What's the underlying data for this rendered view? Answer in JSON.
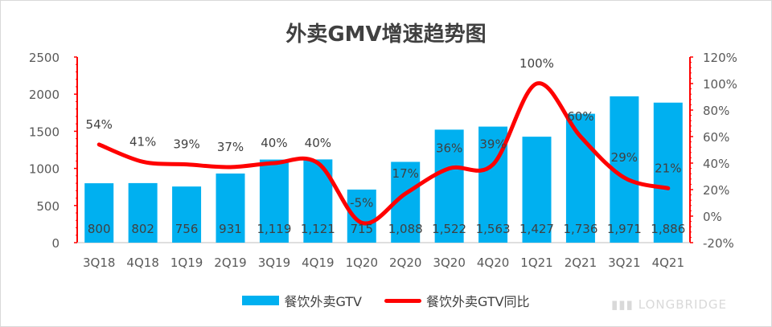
{
  "chart_data": {
    "type": "bar",
    "title": "外卖GMV增速趋势图",
    "categories": [
      "3Q18",
      "4Q18",
      "1Q19",
      "2Q19",
      "3Q19",
      "4Q19",
      "1Q20",
      "2Q20",
      "3Q20",
      "4Q20",
      "1Q21",
      "2Q21",
      "3Q21",
      "4Q21"
    ],
    "series": [
      {
        "name": "餐饮外卖GTV",
        "type": "bar",
        "axis": "left",
        "color": "#00b0f0",
        "values": [
          800,
          802,
          756,
          931,
          1119,
          1121,
          715,
          1088,
          1522,
          1563,
          1427,
          1736,
          1971,
          1886
        ],
        "labels": [
          "800",
          "802",
          "756",
          "931",
          "1,119",
          "1,121",
          "715",
          "1,088",
          "1,522",
          "1,563",
          "1,427",
          "1,736",
          "1,971",
          "1,886"
        ]
      },
      {
        "name": "餐饮外卖GTV同比",
        "type": "line",
        "axis": "right",
        "color": "#ff0000",
        "values": [
          54,
          41,
          39,
          37,
          40,
          40,
          -5,
          17,
          36,
          39,
          100,
          60,
          29,
          21
        ],
        "labels": [
          "54%",
          "41%",
          "39%",
          "37%",
          "40%",
          "40%",
          "-5%",
          "17%",
          "36%",
          "39%",
          "100%",
          "60%",
          "29%",
          "21%"
        ]
      }
    ],
    "y_left": {
      "ylim": [
        0,
        2500
      ],
      "ticks": [
        0,
        500,
        1000,
        1500,
        2000,
        2500
      ],
      "tick_labels": [
        "0",
        "500",
        "1000",
        "1500",
        "2000",
        "2500"
      ]
    },
    "y_right": {
      "ylim": [
        -20,
        120
      ],
      "ticks": [
        -20,
        0,
        20,
        40,
        60,
        80,
        100,
        120
      ],
      "tick_labels": [
        "-20%",
        "0%",
        "20%",
        "40%",
        "60%",
        "80%",
        "100%",
        "120%"
      ]
    },
    "grid": false,
    "legend": "bottom",
    "accent_axis_color": "#ff0000"
  },
  "watermark": {
    "text": "LONGBRIDGE"
  }
}
